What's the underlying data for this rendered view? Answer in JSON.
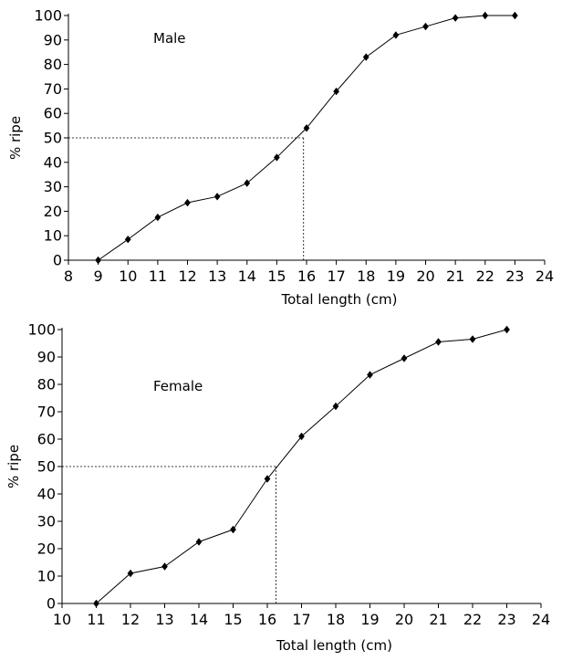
{
  "chart_data": [
    {
      "type": "line",
      "annotation": "Male",
      "xlabel": "Total length (cm)",
      "ylabel": "% ripe",
      "xlim": [
        8,
        24
      ],
      "ylim": [
        0,
        100
      ],
      "xticks": [
        8,
        9,
        10,
        11,
        12,
        13,
        14,
        15,
        16,
        17,
        18,
        19,
        20,
        21,
        22,
        23,
        24
      ],
      "yticks": [
        0,
        10,
        20,
        30,
        40,
        50,
        60,
        70,
        80,
        90,
        100
      ],
      "x": [
        9,
        10,
        11,
        12,
        13,
        14,
        15,
        16,
        17,
        18,
        19,
        20,
        21,
        22,
        23
      ],
      "y": [
        0,
        8.5,
        17.5,
        23.5,
        26,
        31.5,
        42,
        54,
        69,
        83,
        92,
        95.5,
        99,
        100,
        100
      ],
      "reference": {
        "x": 15.9,
        "y": 50
      },
      "marker": "diamond",
      "grid": false
    },
    {
      "type": "line",
      "annotation": "Female",
      "xlabel": "Total length (cm)",
      "ylabel": "% ripe",
      "xlim": [
        10,
        24
      ],
      "ylim": [
        0,
        100
      ],
      "xticks": [
        10,
        11,
        12,
        13,
        14,
        15,
        16,
        17,
        18,
        19,
        20,
        21,
        22,
        23,
        24
      ],
      "yticks": [
        0,
        10,
        20,
        30,
        40,
        50,
        60,
        70,
        80,
        90,
        100
      ],
      "x": [
        11,
        12,
        13,
        14,
        15,
        16,
        17,
        18,
        19,
        20,
        21,
        22,
        23
      ],
      "y": [
        0,
        11,
        13.5,
        22.5,
        27,
        45.5,
        61,
        72,
        83.5,
        89.5,
        95.5,
        96.5,
        100
      ],
      "reference": {
        "x": 16.25,
        "y": 50
      },
      "marker": "diamond",
      "grid": false
    }
  ]
}
